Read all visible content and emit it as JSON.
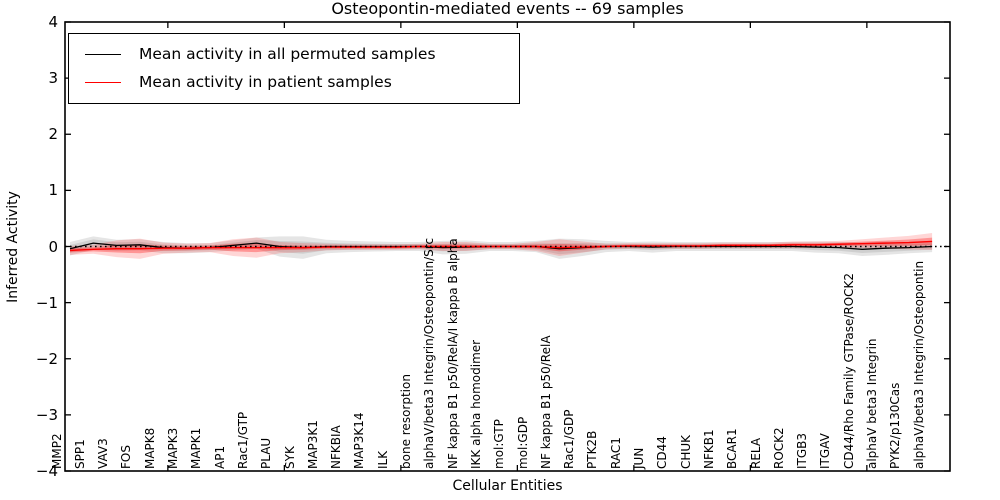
{
  "title": "Osteopontin-mediated events -- 69 samples",
  "axes": {
    "ylabel": "Inferred Activity",
    "xlabel": "Cellular Entities",
    "yticks": [
      "4",
      "3",
      "2",
      "1",
      "0",
      "−1",
      "−2",
      "−3",
      "−4"
    ],
    "ytick_values": [
      4,
      3,
      2,
      1,
      0,
      -1,
      -2,
      -3,
      -4
    ]
  },
  "legend": [
    {
      "label": "Mean activity in all permuted samples",
      "color": "#000000"
    },
    {
      "label": "Mean activity in patient samples",
      "color": "#ff0000"
    }
  ],
  "colors": {
    "permuted_line": "#000000",
    "patient_line": "#ff0000",
    "permuted_band": "rgba(110,110,110,0.18)",
    "patient_band": "rgba(255,0,0,0.16)",
    "patient_band_inner": "rgba(255,0,0,0.30)",
    "zero_line": "#000000",
    "frame": "#000000"
  },
  "chart_data": {
    "type": "line",
    "title": "Osteopontin-mediated events -- 69 samples",
    "xlabel": "Cellular Entities",
    "ylabel": "Inferred Activity",
    "ylim": [
      -4,
      4
    ],
    "legend_position": "upper left",
    "grid": false,
    "reference_line": {
      "y": 0,
      "style": "dotted",
      "color": "#000000"
    },
    "categories": [
      "MMP2",
      "SPP1",
      "VAV3",
      "FOS",
      "MAPK8",
      "MAPK3",
      "MAPK1",
      "AP1",
      "Rac1/GTP",
      "PLAU",
      "SYK",
      "MAP3K1",
      "NFKBIA",
      "MAP3K14",
      "ILK",
      "bone resorption",
      "alphaV/beta3 Integrin/Osteopontin/Src",
      "NF kappa B1 p50/RelA/I kappa B alpha",
      "IKK alpha homodimer",
      "mol:GTP",
      "mol:GDP",
      "NF kappa B1 p50/RelA",
      "Rac1/GDP",
      "PTK2B",
      "RAC1",
      "JUN",
      "CD44",
      "CHUK",
      "NFKB1",
      "BCAR1",
      "RELA",
      "ROCK2",
      "ITGB3",
      "ITGAV",
      "CD44/Rho Family GTPase/ROCK2",
      "alphaV beta3 Integrin",
      "PYK2/p130Cas",
      "alphaV/beta3 Integrin/Osteopontin"
    ],
    "series": [
      {
        "name": "Mean activity in all permuted samples",
        "color": "#000000",
        "values": [
          -0.04,
          0.06,
          0.02,
          0.03,
          -0.02,
          -0.03,
          -0.02,
          0.02,
          0.06,
          0.0,
          -0.02,
          0.0,
          0.0,
          0.0,
          0.0,
          0.0,
          -0.02,
          -0.01,
          0.0,
          0.0,
          0.0,
          -0.04,
          -0.02,
          0.0,
          0.0,
          -0.01,
          0.0,
          0.0,
          0.0,
          0.0,
          0.0,
          0.0,
          -0.01,
          -0.02,
          -0.05,
          -0.03,
          -0.02,
          0.0
        ],
        "band_halfwidth": [
          0.12,
          0.12,
          0.1,
          0.1,
          0.1,
          0.09,
          0.08,
          0.09,
          0.1,
          0.18,
          0.2,
          0.12,
          0.1,
          0.09,
          0.08,
          0.08,
          0.12,
          0.12,
          0.08,
          0.08,
          0.1,
          0.18,
          0.15,
          0.1,
          0.08,
          0.1,
          0.08,
          0.08,
          0.08,
          0.08,
          0.08,
          0.08,
          0.1,
          0.1,
          0.12,
          0.12,
          0.1,
          0.1
        ]
      },
      {
        "name": "Mean activity in patient samples",
        "color": "#ff0000",
        "values": [
          -0.07,
          -0.05,
          -0.04,
          -0.04,
          -0.03,
          -0.03,
          -0.02,
          -0.02,
          -0.02,
          -0.02,
          -0.02,
          -0.01,
          -0.01,
          -0.01,
          -0.01,
          0.0,
          0.0,
          0.0,
          0.0,
          0.0,
          0.0,
          -0.02,
          -0.01,
          0.0,
          0.01,
          0.01,
          0.01,
          0.01,
          0.02,
          0.02,
          0.02,
          0.03,
          0.03,
          0.04,
          0.05,
          0.06,
          0.07,
          0.09
        ],
        "band_halfwidth": [
          0.08,
          0.08,
          0.15,
          0.18,
          0.1,
          0.08,
          0.08,
          0.15,
          0.18,
          0.1,
          0.08,
          0.06,
          0.05,
          0.05,
          0.05,
          0.05,
          0.08,
          0.08,
          0.05,
          0.05,
          0.08,
          0.15,
          0.1,
          0.05,
          0.05,
          0.05,
          0.05,
          0.05,
          0.05,
          0.05,
          0.05,
          0.06,
          0.06,
          0.06,
          0.08,
          0.1,
          0.12,
          0.15
        ]
      }
    ]
  }
}
